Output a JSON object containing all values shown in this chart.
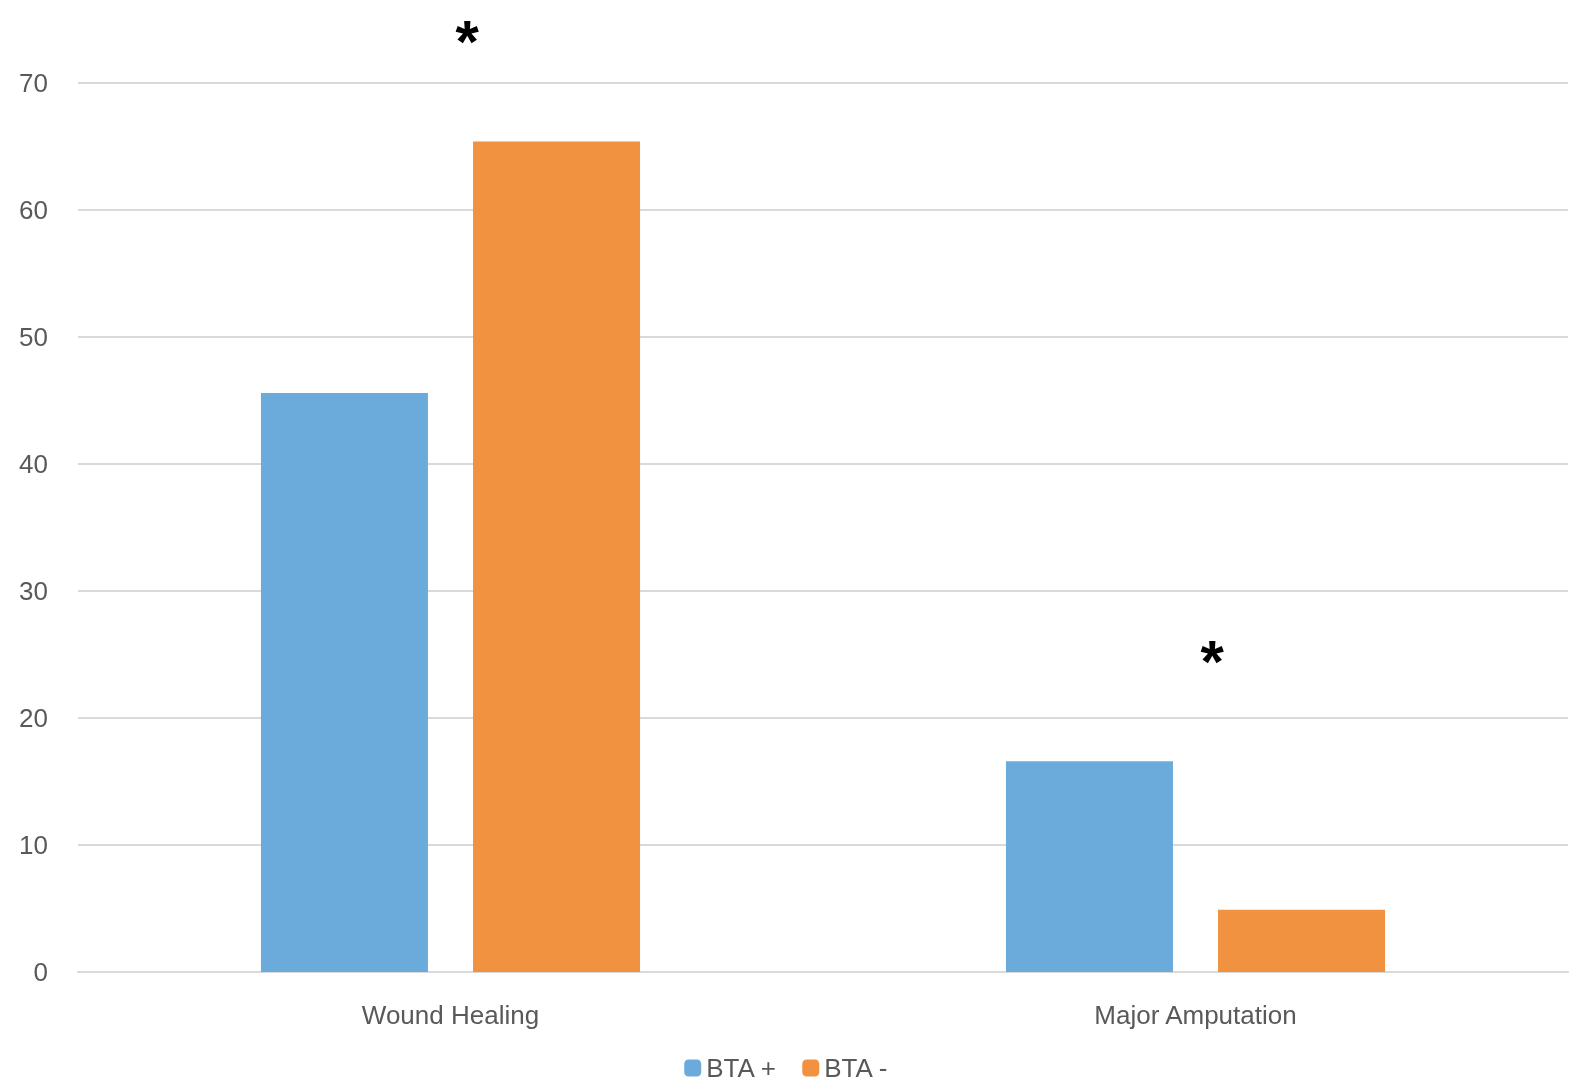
{
  "chart_data": {
    "type": "bar",
    "categories": [
      "Wound Healing",
      "Major Amputation"
    ],
    "series": [
      {
        "name": "BTA +",
        "color": "#6aabdc",
        "values": [
          45.6,
          16.6
        ]
      },
      {
        "name": "BTA -",
        "color": "#f09240",
        "values": [
          65.4,
          4.9
        ]
      }
    ],
    "ylim": [
      0,
      70
    ],
    "yticks": [
      0,
      10,
      20,
      30,
      40,
      50,
      60,
      70
    ],
    "grid": "y",
    "legend": "bottom",
    "annotations": [
      "*",
      "*"
    ]
  }
}
